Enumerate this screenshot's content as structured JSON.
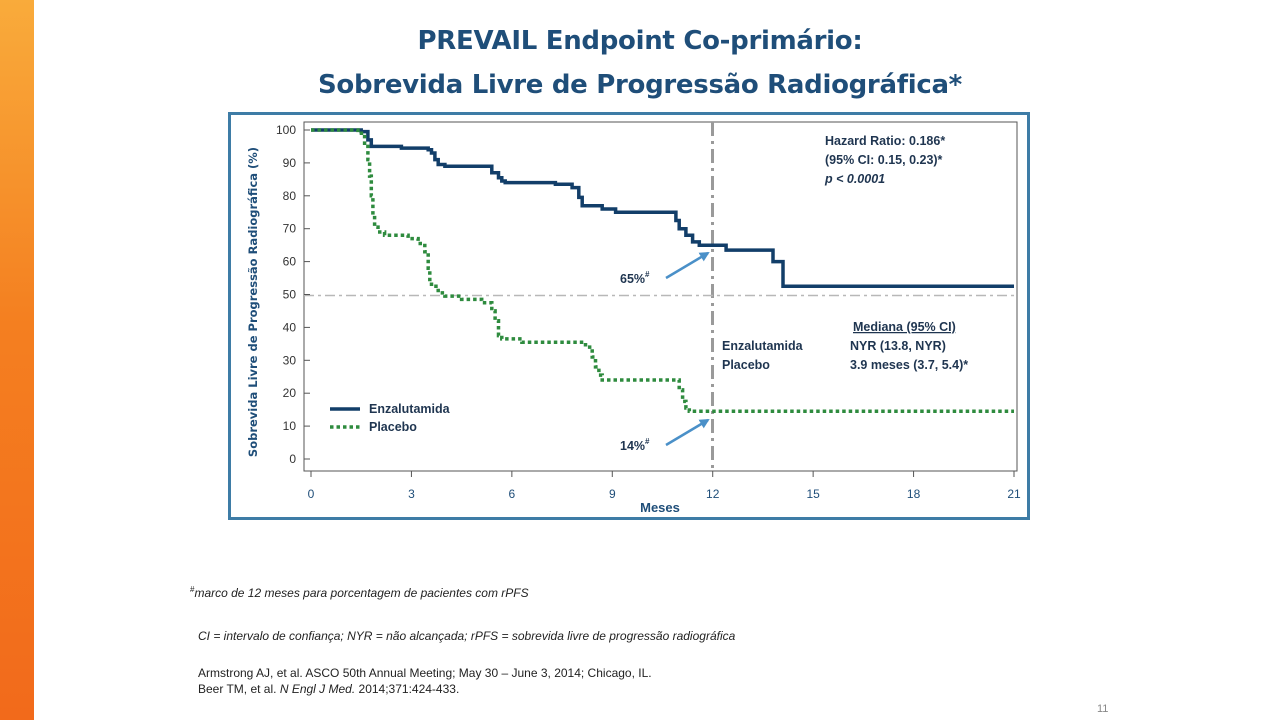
{
  "slide": {
    "title_line1": "PREVAIL Endpoint Co-primário:",
    "title_line2": "Sobrevida Livre de Progressão Radiográfica*",
    "page_number": "11",
    "brand_color": "#f47f20",
    "title_color": "#1f4e79"
  },
  "footnotes": {
    "marker": "#",
    "milestone": "marco de 12 meses para porcentagem de pacientes com rPFS",
    "abbreviations": "CI = intervalo de confiança;  NYR = não alcançada; rPFS =  sobrevida livre de progressão radiográfica",
    "ref1": "Armstrong AJ, et al. ASCO 50th Annual Meeting; May 30 – June 3, 2014;  Chicago, IL.",
    "ref2_prefix": "Beer TM, et al. ",
    "ref2_journal": "N Engl J Med.",
    "ref2_suffix": " 2014;371:424-433."
  },
  "chart_data": {
    "type": "line",
    "title": "",
    "xlabel": "Meses",
    "ylabel": "Sobrevida Livre de Progressão Radiográfica  (%)",
    "xlim": [
      0,
      21
    ],
    "ylim": [
      0,
      100
    ],
    "xticks": [
      0,
      3,
      6,
      9,
      12,
      15,
      18,
      21
    ],
    "yticks": [
      0,
      10,
      20,
      30,
      40,
      50,
      60,
      70,
      80,
      90,
      100
    ],
    "grid": false,
    "reference_lines": [
      {
        "axis": "x",
        "value": 12,
        "style": "dash-dot"
      },
      {
        "axis": "y",
        "value": 50,
        "style": "dash-dot"
      }
    ],
    "legend": {
      "placement": "bottom-left",
      "entries": [
        "Enzalutamida",
        "Placebo"
      ]
    },
    "series": [
      {
        "name": "Enzalutamida",
        "color": "#123e69",
        "style": "solid",
        "points": [
          [
            0,
            100
          ],
          [
            1.5,
            100
          ],
          [
            1.5,
            99.5
          ],
          [
            1.7,
            99.5
          ],
          [
            1.7,
            97
          ],
          [
            1.8,
            97
          ],
          [
            1.8,
            95
          ],
          [
            2.7,
            95
          ],
          [
            2.7,
            94.5
          ],
          [
            3.5,
            94.5
          ],
          [
            3.5,
            94
          ],
          [
            3.6,
            94
          ],
          [
            3.6,
            93
          ],
          [
            3.7,
            93
          ],
          [
            3.7,
            91
          ],
          [
            3.8,
            91
          ],
          [
            3.8,
            89.5
          ],
          [
            4,
            89.5
          ],
          [
            4,
            89
          ],
          [
            5.4,
            89
          ],
          [
            5.4,
            87
          ],
          [
            5.6,
            87
          ],
          [
            5.6,
            85.5
          ],
          [
            5.7,
            85.5
          ],
          [
            5.7,
            84.5
          ],
          [
            5.8,
            84.5
          ],
          [
            5.8,
            84
          ],
          [
            7.3,
            84
          ],
          [
            7.3,
            83.5
          ],
          [
            7.8,
            83.5
          ],
          [
            7.8,
            82.5
          ],
          [
            8,
            82.5
          ],
          [
            8,
            79.5
          ],
          [
            8.1,
            79.5
          ],
          [
            8.1,
            77
          ],
          [
            8.7,
            77
          ],
          [
            8.7,
            76
          ],
          [
            9.1,
            76
          ],
          [
            9.1,
            75
          ],
          [
            10.9,
            75
          ],
          [
            10.9,
            72.5
          ],
          [
            11,
            72.5
          ],
          [
            11,
            70
          ],
          [
            11.2,
            70
          ],
          [
            11.2,
            68
          ],
          [
            11.4,
            68
          ],
          [
            11.4,
            66
          ],
          [
            11.6,
            66
          ],
          [
            11.6,
            65
          ],
          [
            12.4,
            65
          ],
          [
            12.4,
            63.5
          ],
          [
            13.8,
            63.5
          ],
          [
            13.8,
            60
          ],
          [
            14.1,
            60
          ],
          [
            14.1,
            52.5
          ],
          [
            21,
            52.5
          ]
        ]
      },
      {
        "name": "Placebo",
        "color": "#2e8b3e",
        "style": "dotted",
        "points": [
          [
            0,
            100
          ],
          [
            1.4,
            100
          ],
          [
            1.4,
            99
          ],
          [
            1.6,
            99
          ],
          [
            1.6,
            96
          ],
          [
            1.7,
            96
          ],
          [
            1.7,
            91
          ],
          [
            1.75,
            91
          ],
          [
            1.75,
            86
          ],
          [
            1.8,
            86
          ],
          [
            1.8,
            80
          ],
          [
            1.85,
            80
          ],
          [
            1.85,
            74
          ],
          [
            1.9,
            74
          ],
          [
            1.9,
            70.5
          ],
          [
            2.0,
            70.5
          ],
          [
            2.0,
            69
          ],
          [
            2.2,
            69
          ],
          [
            2.2,
            68
          ],
          [
            2.9,
            68
          ],
          [
            2.9,
            67
          ],
          [
            3.2,
            67
          ],
          [
            3.2,
            65.5
          ],
          [
            3.4,
            65.5
          ],
          [
            3.4,
            63
          ],
          [
            3.5,
            63
          ],
          [
            3.5,
            58
          ],
          [
            3.55,
            58
          ],
          [
            3.55,
            54
          ],
          [
            3.6,
            54
          ],
          [
            3.6,
            52.5
          ],
          [
            3.8,
            52.5
          ],
          [
            3.8,
            50.5
          ],
          [
            4.0,
            50.5
          ],
          [
            4.0,
            49.5
          ],
          [
            4.5,
            49.5
          ],
          [
            4.5,
            48.5
          ],
          [
            5.1,
            48.5
          ],
          [
            5.1,
            47.5
          ],
          [
            5.4,
            47.5
          ],
          [
            5.4,
            45
          ],
          [
            5.5,
            45
          ],
          [
            5.5,
            42
          ],
          [
            5.6,
            42
          ],
          [
            5.6,
            37.5
          ],
          [
            5.7,
            37.5
          ],
          [
            5.7,
            36.5
          ],
          [
            6.3,
            36.5
          ],
          [
            6.3,
            35.5
          ],
          [
            8.2,
            35.5
          ],
          [
            8.2,
            34
          ],
          [
            8.4,
            34
          ],
          [
            8.4,
            31
          ],
          [
            8.5,
            31
          ],
          [
            8.5,
            28
          ],
          [
            8.6,
            28
          ],
          [
            8.6,
            25.5
          ],
          [
            8.7,
            25.5
          ],
          [
            8.7,
            24
          ],
          [
            11.0,
            24
          ],
          [
            11.0,
            21
          ],
          [
            11.1,
            21
          ],
          [
            11.1,
            17.5
          ],
          [
            11.2,
            17.5
          ],
          [
            11.2,
            15.5
          ],
          [
            11.3,
            15.5
          ],
          [
            11.3,
            14.5
          ],
          [
            21,
            14.5
          ]
        ]
      }
    ],
    "annotations": {
      "hr_line1": "Hazard Ratio: 0.186*",
      "hr_line2": "(95% CI: 0.15, 0.23)*",
      "hr_line3": "p < 0.0001",
      "median_header": "Mediana (95% CI)",
      "median_rows": [
        {
          "group": "Enzalutamida",
          "value": "NYR (13.8, NYR)"
        },
        {
          "group": "Placebo",
          "value": "3.9 meses (3.7, 5.4)*"
        }
      ],
      "milestone_enza": "65%",
      "milestone_placebo": "14%",
      "milestone_marker": "#",
      "arrow_color": "#4a90c8"
    }
  }
}
